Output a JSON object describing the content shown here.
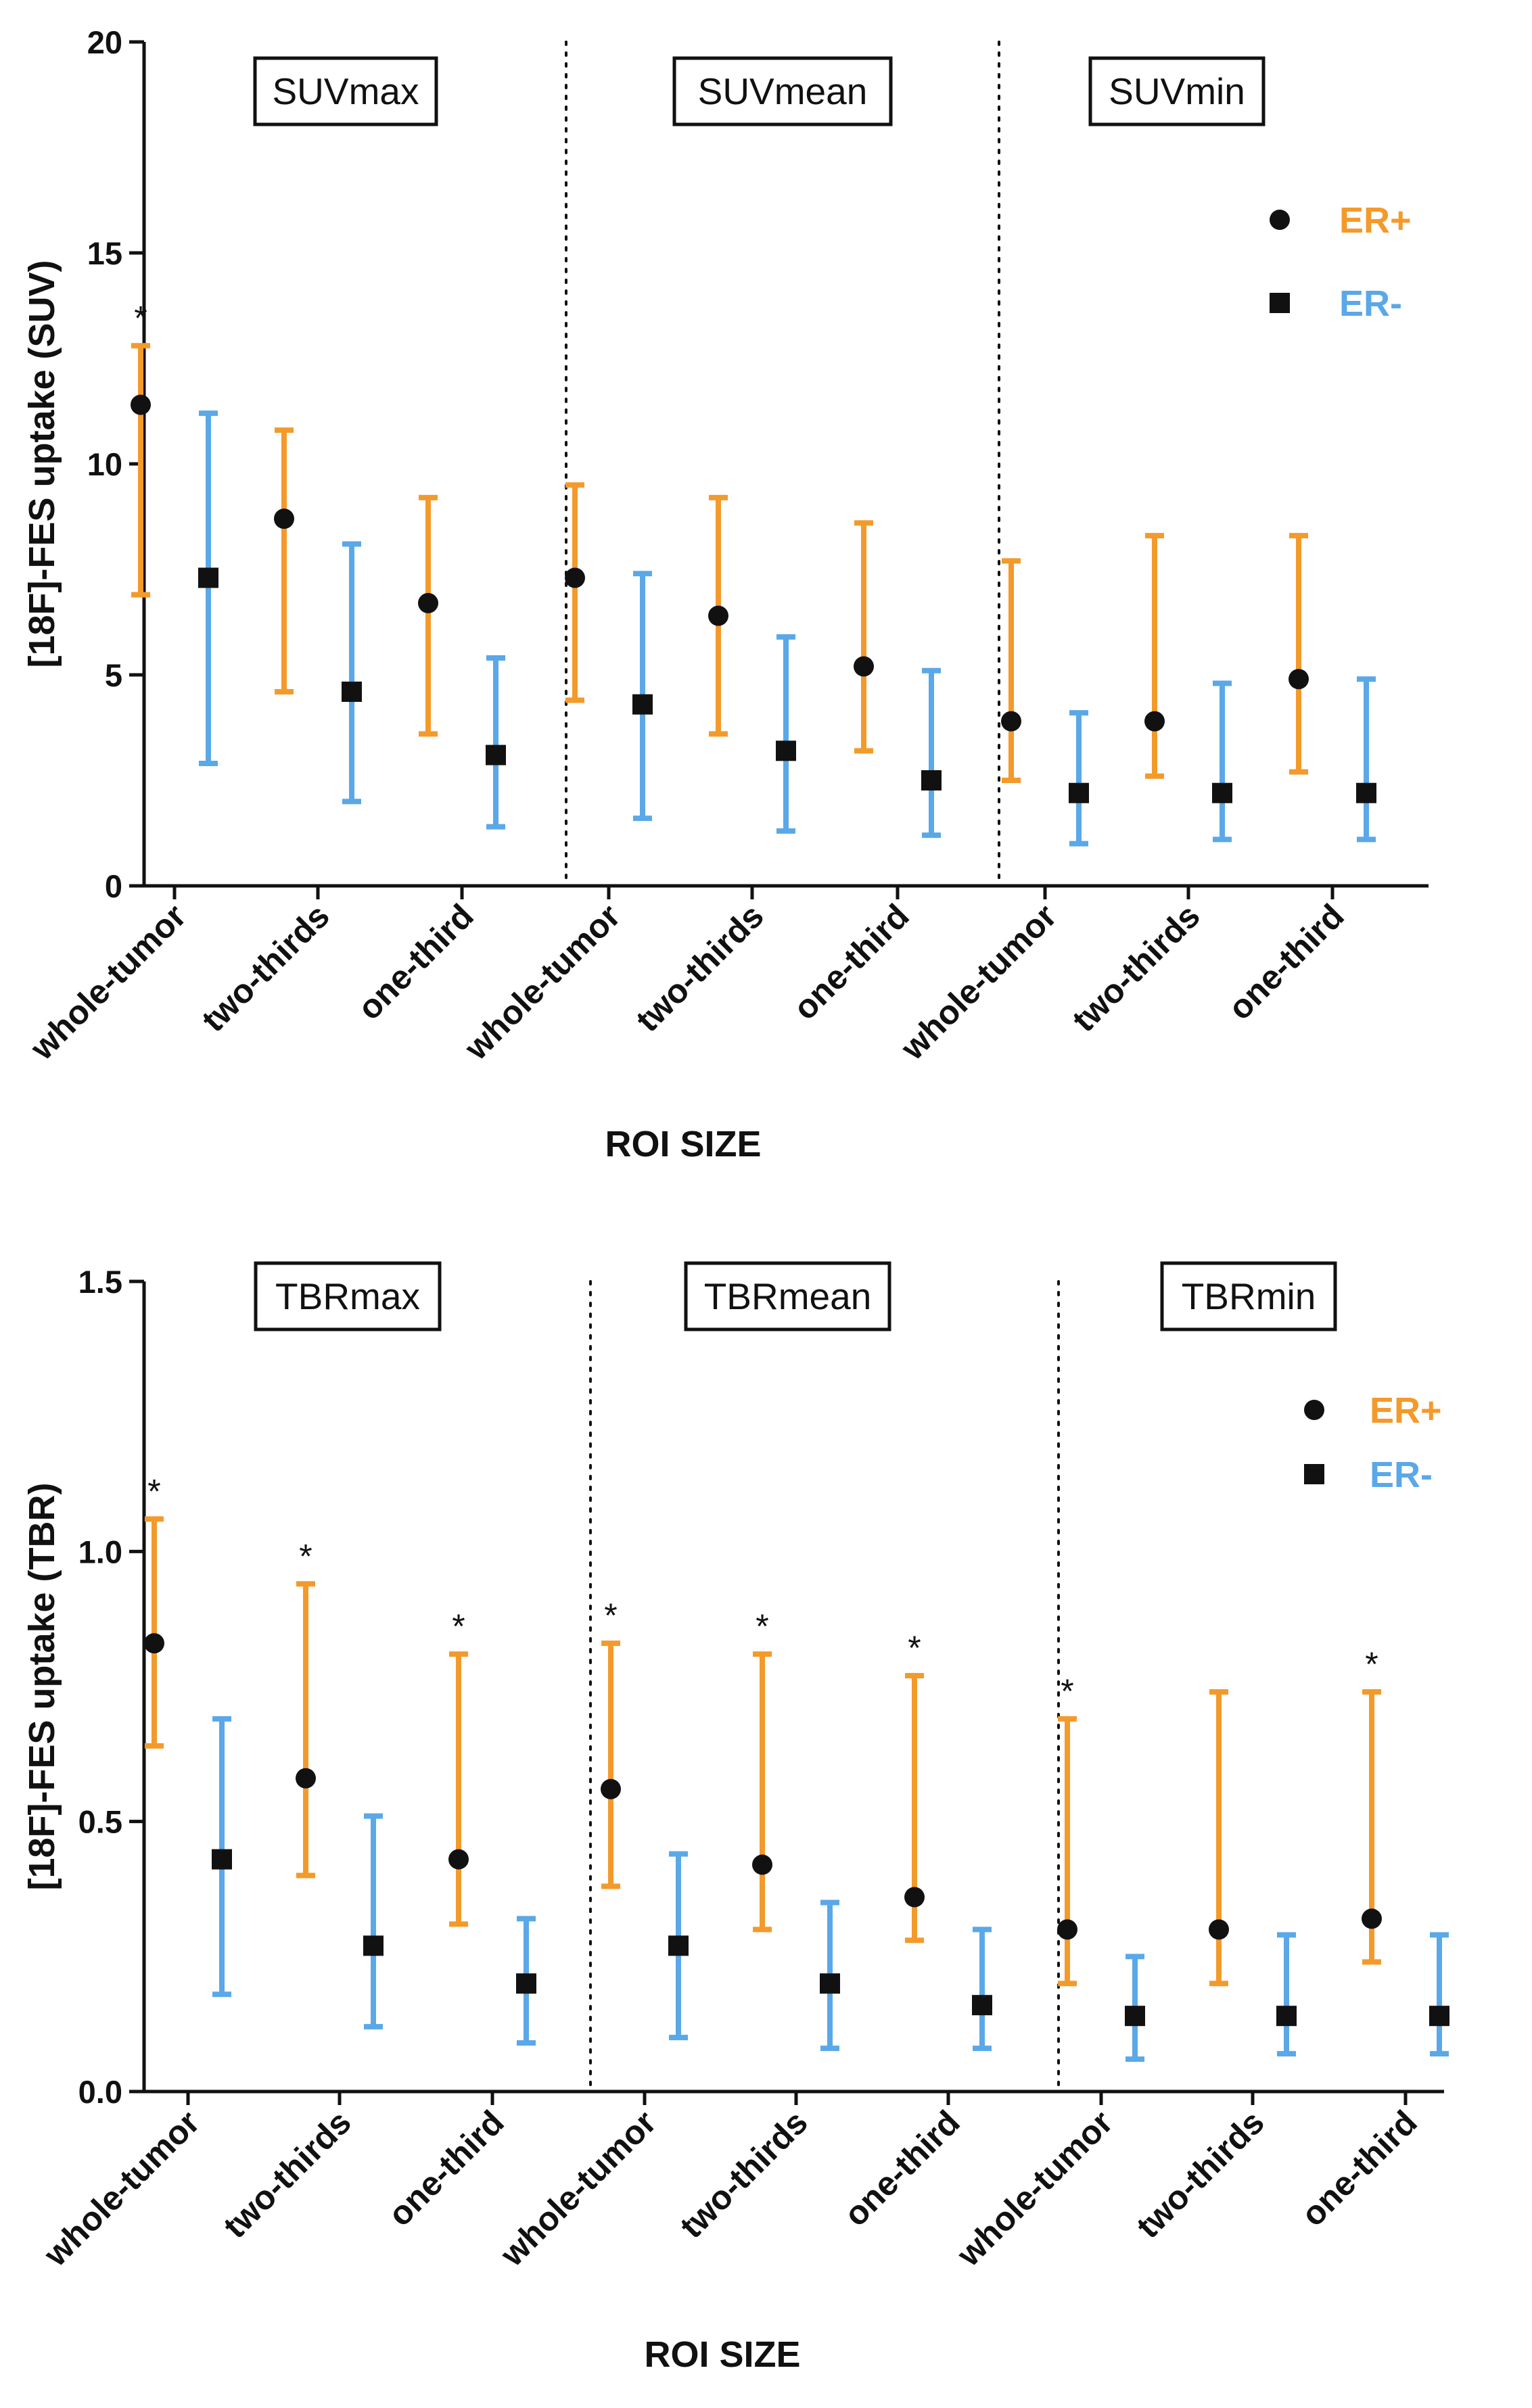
{
  "chart_data": [
    {
      "type": "scatter",
      "subtype": "point-with-error-bars",
      "ylabel": "[18F]-FES uptake (SUV)",
      "xlabel": "ROI SIZE",
      "ylim": [
        0,
        20
      ],
      "yticks": [
        0,
        5,
        10,
        15,
        20
      ],
      "ytick_labels": [
        "0",
        "5",
        "10",
        "15",
        "20"
      ],
      "categories": [
        "whole-tumor",
        "two-thirds",
        "one-third",
        "whole-tumor",
        "two-thirds",
        "one-third",
        "whole-tumor",
        "two-thirds",
        "one-third"
      ],
      "panel_labels": [
        "SUVmax",
        "SUVmean",
        "SUVmin"
      ],
      "significance_marker": "*",
      "legend": {
        "placement": "top-right",
        "entries": [
          {
            "label": "ER+",
            "marker": "circle",
            "color": "#F39A2B"
          },
          {
            "label": "ER-",
            "marker": "square",
            "color": "#5AA8E8"
          }
        ]
      },
      "series": [
        {
          "name": "ER+",
          "marker": "circle",
          "color": "#F39A2B",
          "values": [
            11.4,
            8.7,
            6.7,
            7.3,
            6.4,
            5.2,
            3.9,
            3.9,
            4.9
          ],
          "lower": [
            6.9,
            4.6,
            3.6,
            4.4,
            3.6,
            3.2,
            2.5,
            2.6,
            2.7
          ],
          "upper": [
            12.8,
            10.8,
            9.2,
            9.5,
            9.2,
            8.6,
            7.7,
            8.3,
            8.3
          ],
          "significant": [
            true,
            false,
            false,
            false,
            false,
            false,
            false,
            false,
            false
          ]
        },
        {
          "name": "ER-",
          "marker": "square",
          "color": "#5AA8E8",
          "values": [
            7.3,
            4.6,
            3.1,
            4.3,
            3.2,
            2.5,
            2.2,
            2.2,
            2.2
          ],
          "lower": [
            2.9,
            2.0,
            1.4,
            1.6,
            1.3,
            1.2,
            1.0,
            1.1,
            1.1
          ],
          "upper": [
            11.2,
            8.1,
            5.4,
            7.4,
            5.9,
            5.1,
            4.1,
            4.8,
            4.9
          ],
          "significant": [
            false,
            false,
            false,
            false,
            false,
            false,
            false,
            false,
            false
          ]
        }
      ]
    },
    {
      "type": "scatter",
      "subtype": "point-with-error-bars",
      "ylabel": "[18F]-FES uptake (TBR)",
      "xlabel": "ROI SIZE",
      "ylim": [
        0,
        1.5
      ],
      "yticks": [
        0,
        0.5,
        1.0,
        1.5
      ],
      "ytick_labels": [
        "0.0",
        "0.5",
        "1.0",
        "1.5"
      ],
      "categories": [
        "whole-tumor",
        "two-thirds",
        "one-third",
        "whole-tumor",
        "two-thirds",
        "one-third",
        "whole-tumor",
        "two-thirds",
        "one-third"
      ],
      "panel_labels": [
        "TBRmax",
        "TBRmean",
        "TBRmin"
      ],
      "significance_marker": "*",
      "legend": {
        "placement": "top-right",
        "entries": [
          {
            "label": "ER+",
            "marker": "circle",
            "color": "#F39A2B"
          },
          {
            "label": "ER-",
            "marker": "square",
            "color": "#5AA8E8"
          }
        ]
      },
      "series": [
        {
          "name": "ER+",
          "marker": "circle",
          "color": "#F39A2B",
          "values": [
            0.83,
            0.58,
            0.43,
            0.56,
            0.42,
            0.36,
            0.3,
            0.3,
            0.32
          ],
          "lower": [
            0.64,
            0.4,
            0.31,
            0.38,
            0.3,
            0.28,
            0.2,
            0.2,
            0.24
          ],
          "upper": [
            1.06,
            0.94,
            0.81,
            0.83,
            0.81,
            0.77,
            0.69,
            0.74,
            0.74
          ],
          "significant": [
            true,
            true,
            true,
            true,
            true,
            true,
            true,
            false,
            true
          ]
        },
        {
          "name": "ER-",
          "marker": "square",
          "color": "#5AA8E8",
          "values": [
            0.43,
            0.27,
            0.2,
            0.27,
            0.2,
            0.16,
            0.14,
            0.14,
            0.14
          ],
          "lower": [
            0.18,
            0.12,
            0.09,
            0.1,
            0.08,
            0.08,
            0.06,
            0.07,
            0.07
          ],
          "upper": [
            0.69,
            0.51,
            0.32,
            0.44,
            0.35,
            0.3,
            0.25,
            0.29,
            0.29
          ],
          "significant": [
            false,
            false,
            false,
            false,
            false,
            false,
            false,
            false,
            false
          ]
        }
      ]
    }
  ]
}
